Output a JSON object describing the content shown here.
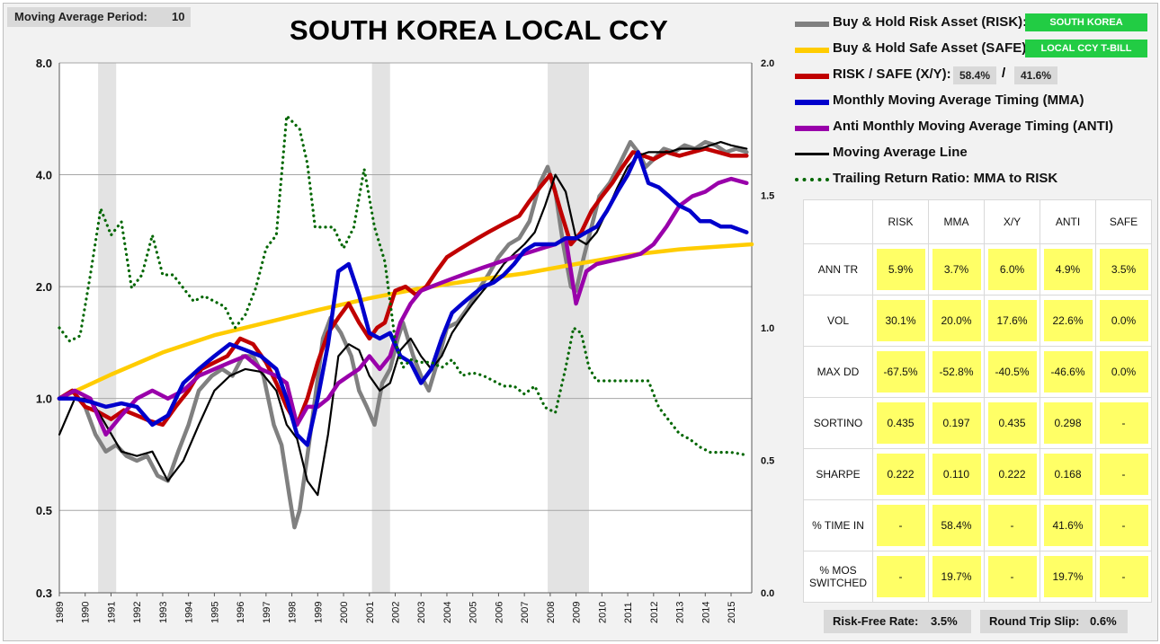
{
  "settings": {
    "period_label": "Moving Average Period:",
    "period_value": "10"
  },
  "chart_data": {
    "type": "line",
    "title": "SOUTH KOREA LOCAL CCY",
    "y_scale": "log",
    "ylim": [
      0.3,
      8.0
    ],
    "y_ticks": [
      "0.3",
      "0.5",
      "1.0",
      "2.0",
      "4.0",
      "8.0"
    ],
    "y2lim": [
      0.0,
      2.0
    ],
    "y2_ticks": [
      "0.0",
      "0.5",
      "1.0",
      "1.5",
      "2.0"
    ],
    "x_ticks": [
      "1989",
      "1990",
      "1991",
      "1992",
      "1993",
      "1994",
      "1995",
      "1996",
      "1997",
      "1998",
      "1999",
      "2000",
      "2001",
      "2002",
      "2003",
      "2004",
      "2005",
      "2006",
      "2007",
      "2008",
      "2009",
      "2010",
      "2011",
      "2012",
      "2013",
      "2014",
      "2015"
    ],
    "xlim": [
      1989.0,
      2015.8
    ],
    "recessions": [
      [
        1990.5,
        1991.2
      ],
      [
        2001.1,
        2001.8
      ],
      [
        2007.9,
        2009.5
      ]
    ],
    "grid": true,
    "legend_position": "right",
    "series": [
      {
        "name": "Buy & Hold Risk Asset (RISK):",
        "color": "#808080",
        "axis": "left",
        "style": "thick",
        "x": [
          1989.0,
          1989.5,
          1990.0,
          1990.4,
          1990.8,
          1991.2,
          1991.6,
          1992.0,
          1992.4,
          1992.8,
          1993.2,
          1993.6,
          1994.0,
          1994.4,
          1994.9,
          1995.3,
          1995.7,
          1996.1,
          1996.5,
          1996.9,
          1997.3,
          1997.6,
          1997.9,
          1998.1,
          1998.3,
          1998.6,
          1998.9,
          1999.2,
          1999.5,
          1999.9,
          2000.3,
          2000.6,
          2000.9,
          2001.2,
          2001.5,
          2001.8,
          2002.1,
          2002.3,
          2002.7,
          2003.0,
          2003.3,
          2003.7,
          2004.0,
          2004.4,
          2004.8,
          2005.2,
          2005.6,
          2006.0,
          2006.4,
          2006.8,
          2007.2,
          2007.6,
          2007.9,
          2008.2,
          2008.5,
          2008.8,
          2009.0,
          2009.3,
          2009.6,
          2009.9,
          2010.3,
          2010.7,
          2011.1,
          2011.4,
          2011.7,
          2012.0,
          2012.4,
          2012.8,
          2013.2,
          2013.6,
          2014.0,
          2014.4,
          2014.8,
          2015.2,
          2015.6
        ],
        "y": [
          1.0,
          1.05,
          0.95,
          0.8,
          0.72,
          0.75,
          0.7,
          0.68,
          0.7,
          0.62,
          0.6,
          0.72,
          0.85,
          1.05,
          1.15,
          1.2,
          1.15,
          1.3,
          1.3,
          1.15,
          0.85,
          0.75,
          0.55,
          0.45,
          0.5,
          0.7,
          1.0,
          1.45,
          1.65,
          1.5,
          1.3,
          1.05,
          0.95,
          0.85,
          1.1,
          1.2,
          1.45,
          1.6,
          1.3,
          1.15,
          1.05,
          1.3,
          1.55,
          1.6,
          1.75,
          1.95,
          2.15,
          2.4,
          2.6,
          2.7,
          3.0,
          3.8,
          4.2,
          3.6,
          2.6,
          2.0,
          1.95,
          2.4,
          2.9,
          3.5,
          3.8,
          4.3,
          4.9,
          4.6,
          4.2,
          4.4,
          4.7,
          4.6,
          4.8,
          4.7,
          4.9,
          4.8,
          4.6,
          4.7,
          4.6
        ]
      },
      {
        "name": "Buy & Hold Safe Asset (SAFE):",
        "color": "#ffcc00",
        "axis": "left",
        "style": "thick",
        "x": [
          1989.0,
          1991.0,
          1993.0,
          1995.0,
          1997.0,
          1999.0,
          2001.0,
          2003.0,
          2005.0,
          2007.0,
          2009.0,
          2011.0,
          2013.0,
          2015.8
        ],
        "y": [
          1.0,
          1.16,
          1.33,
          1.48,
          1.6,
          1.73,
          1.86,
          1.98,
          2.08,
          2.17,
          2.3,
          2.43,
          2.52,
          2.6
        ]
      },
      {
        "name": "RISK / SAFE (X/Y):",
        "color": "#c00000",
        "axis": "left",
        "style": "thick",
        "x": [
          1989.0,
          1989.5,
          1990.0,
          1990.5,
          1991.0,
          1991.5,
          1992.0,
          1992.5,
          1993.0,
          1993.5,
          1994.0,
          1994.5,
          1995.0,
          1995.5,
          1996.0,
          1996.5,
          1997.0,
          1997.4,
          1997.8,
          1998.2,
          1998.6,
          1999.0,
          1999.4,
          1999.8,
          2000.2,
          2000.6,
          2001.0,
          2001.3,
          2001.6,
          2002.0,
          2002.4,
          2002.8,
          2003.2,
          2003.6,
          2004.0,
          2004.4,
          2004.8,
          2005.2,
          2005.6,
          2006.0,
          2006.4,
          2006.8,
          2007.2,
          2007.6,
          2008.0,
          2008.4,
          2008.8,
          2009.2,
          2009.6,
          2010.0,
          2010.4,
          2010.8,
          2011.2,
          2011.6,
          2012.0,
          2012.5,
          2013.0,
          2013.5,
          2014.0,
          2014.5,
          2015.0,
          2015.6
        ],
        "y": [
          1.0,
          1.05,
          0.95,
          0.92,
          0.88,
          0.93,
          0.9,
          0.87,
          0.85,
          0.95,
          1.05,
          1.2,
          1.25,
          1.3,
          1.45,
          1.4,
          1.25,
          1.1,
          0.95,
          0.85,
          1.0,
          1.25,
          1.5,
          1.65,
          1.8,
          1.6,
          1.45,
          1.55,
          1.6,
          1.95,
          2.0,
          1.9,
          2.0,
          2.2,
          2.4,
          2.5,
          2.6,
          2.7,
          2.8,
          2.9,
          3.0,
          3.1,
          3.4,
          3.7,
          4.0,
          3.2,
          2.6,
          2.8,
          3.2,
          3.5,
          3.8,
          4.2,
          4.6,
          4.5,
          4.4,
          4.6,
          4.5,
          4.6,
          4.7,
          4.6,
          4.5,
          4.5
        ]
      },
      {
        "name": "Monthly Moving Average Timing (MMA)",
        "color": "#0000cc",
        "axis": "left",
        "style": "thick",
        "x": [
          1989.0,
          1989.6,
          1990.2,
          1990.8,
          1991.4,
          1992.0,
          1992.6,
          1993.2,
          1993.8,
          1994.4,
          1995.0,
          1995.6,
          1996.2,
          1996.8,
          1997.4,
          1997.8,
          1998.2,
          1998.6,
          1999.0,
          1999.4,
          1999.8,
          2000.2,
          2000.6,
          2001.0,
          2001.4,
          2001.8,
          2002.2,
          2002.6,
          2003.0,
          2003.4,
          2003.8,
          2004.2,
          2004.6,
          2005.0,
          2005.4,
          2005.8,
          2006.2,
          2006.6,
          2007.0,
          2007.4,
          2007.8,
          2008.2,
          2008.6,
          2009.0,
          2009.4,
          2009.8,
          2010.2,
          2010.6,
          2011.0,
          2011.4,
          2011.8,
          2012.2,
          2012.6,
          2013.0,
          2013.4,
          2013.8,
          2014.2,
          2014.6,
          2015.0,
          2015.6
        ],
        "y": [
          1.0,
          1.0,
          0.98,
          0.95,
          0.97,
          0.95,
          0.85,
          0.9,
          1.1,
          1.2,
          1.3,
          1.4,
          1.35,
          1.3,
          1.2,
          1.0,
          0.8,
          0.75,
          1.0,
          1.4,
          2.2,
          2.3,
          1.9,
          1.5,
          1.45,
          1.5,
          1.3,
          1.25,
          1.1,
          1.2,
          1.45,
          1.7,
          1.8,
          1.9,
          2.0,
          2.05,
          2.15,
          2.3,
          2.5,
          2.6,
          2.6,
          2.6,
          2.7,
          2.7,
          2.8,
          2.9,
          3.2,
          3.6,
          4.0,
          4.6,
          3.8,
          3.7,
          3.5,
          3.3,
          3.2,
          3.0,
          3.0,
          2.9,
          2.9,
          2.8
        ]
      },
      {
        "name": "Anti Monthly Moving Average Timing (ANTI)",
        "color": "#9900aa",
        "axis": "left",
        "style": "thick",
        "x": [
          1989.0,
          1989.6,
          1990.2,
          1990.8,
          1991.4,
          1992.0,
          1992.6,
          1993.2,
          1993.8,
          1994.4,
          1995.0,
          1995.6,
          1996.2,
          1996.8,
          1997.4,
          1997.8,
          1998.2,
          1998.6,
          1999.0,
          1999.4,
          1999.8,
          2000.2,
          2000.6,
          2001.0,
          2001.4,
          2001.8,
          2002.2,
          2002.6,
          2003.0,
          2003.4,
          2003.8,
          2004.2,
          2004.6,
          2005.0,
          2005.4,
          2005.8,
          2006.2,
          2006.6,
          2007.0,
          2007.4,
          2007.8,
          2008.2,
          2008.6,
          2009.0,
          2009.4,
          2009.8,
          2010.4,
          2011.0,
          2011.5,
          2012.0,
          2012.5,
          2013.0,
          2013.5,
          2014.0,
          2014.5,
          2015.0,
          2015.6
        ],
        "y": [
          1.0,
          1.05,
          1.0,
          0.8,
          0.9,
          1.0,
          1.05,
          1.0,
          1.05,
          1.15,
          1.2,
          1.25,
          1.3,
          1.2,
          1.15,
          1.1,
          0.85,
          0.95,
          0.95,
          1.0,
          1.1,
          1.15,
          1.2,
          1.3,
          1.2,
          1.3,
          1.6,
          1.8,
          1.95,
          2.0,
          2.05,
          2.1,
          2.15,
          2.2,
          2.25,
          2.3,
          2.35,
          2.4,
          2.45,
          2.5,
          2.55,
          2.6,
          2.7,
          1.8,
          2.2,
          2.3,
          2.35,
          2.4,
          2.45,
          2.6,
          2.9,
          3.3,
          3.5,
          3.6,
          3.8,
          3.9,
          3.8
        ]
      },
      {
        "name": "Moving Average Line",
        "color": "#000000",
        "axis": "left",
        "style": "thin",
        "x": [
          1989.0,
          1989.6,
          1990.2,
          1990.8,
          1991.4,
          1992.0,
          1992.6,
          1993.2,
          1993.8,
          1994.4,
          1995.0,
          1995.6,
          1996.2,
          1996.8,
          1997.4,
          1997.8,
          1998.2,
          1998.6,
          1999.0,
          1999.4,
          1999.8,
          2000.2,
          2000.6,
          2001.0,
          2001.4,
          2001.8,
          2002.2,
          2002.6,
          2003.0,
          2003.4,
          2003.8,
          2004.2,
          2004.6,
          2005.0,
          2005.4,
          2005.8,
          2006.2,
          2006.6,
          2007.0,
          2007.4,
          2007.8,
          2008.2,
          2008.6,
          2009.0,
          2009.4,
          2009.8,
          2010.2,
          2010.6,
          2011.0,
          2011.4,
          2011.8,
          2012.2,
          2012.6,
          2013.0,
          2013.4,
          2013.8,
          2014.2,
          2014.6,
          2015.0,
          2015.6
        ],
        "y": [
          0.8,
          1.0,
          1.0,
          0.85,
          0.72,
          0.7,
          0.72,
          0.6,
          0.68,
          0.85,
          1.05,
          1.15,
          1.2,
          1.18,
          1.05,
          0.85,
          0.78,
          0.6,
          0.55,
          0.8,
          1.3,
          1.4,
          1.35,
          1.15,
          1.05,
          1.1,
          1.35,
          1.45,
          1.3,
          1.2,
          1.3,
          1.5,
          1.65,
          1.8,
          1.95,
          2.1,
          2.3,
          2.45,
          2.6,
          2.8,
          3.3,
          4.0,
          3.6,
          2.7,
          2.6,
          2.8,
          3.2,
          3.7,
          4.2,
          4.5,
          4.6,
          4.6,
          4.6,
          4.7,
          4.7,
          4.7,
          4.8,
          4.9,
          4.8,
          4.7
        ]
      },
      {
        "name": "Trailing Return Ratio: MMA to RISK",
        "color": "#006600",
        "axis": "right",
        "style": "dotted",
        "x": [
          1989.0,
          1989.4,
          1989.8,
          1990.2,
          1990.6,
          1991.0,
          1991.4,
          1991.8,
          1992.2,
          1992.6,
          1993.0,
          1993.4,
          1993.8,
          1994.2,
          1994.6,
          1995.0,
          1995.4,
          1995.8,
          1996.2,
          1996.6,
          1997.0,
          1997.4,
          1997.8,
          1998.0,
          1998.3,
          1998.6,
          1998.9,
          1999.2,
          1999.6,
          2000.0,
          2000.4,
          2000.8,
          2001.2,
          2001.6,
          2002.0,
          2002.3,
          2002.6,
          2003.0,
          2003.4,
          2003.8,
          2004.2,
          2004.6,
          2005.0,
          2005.4,
          2005.8,
          2006.2,
          2006.6,
          2007.0,
          2007.4,
          2007.8,
          2008.2,
          2008.6,
          2008.9,
          2009.2,
          2009.5,
          2009.8,
          2010.2,
          2010.6,
          2011.0,
          2011.4,
          2011.8,
          2012.2,
          2012.6,
          2013.0,
          2013.4,
          2013.8,
          2014.2,
          2014.6,
          2015.0,
          2015.6
        ],
        "y": [
          1.0,
          0.95,
          0.97,
          1.2,
          1.45,
          1.35,
          1.4,
          1.15,
          1.2,
          1.35,
          1.2,
          1.2,
          1.15,
          1.1,
          1.12,
          1.1,
          1.08,
          1.0,
          1.05,
          1.15,
          1.3,
          1.35,
          1.8,
          1.78,
          1.75,
          1.62,
          1.38,
          1.38,
          1.38,
          1.3,
          1.38,
          1.6,
          1.38,
          1.25,
          0.95,
          0.85,
          0.88,
          0.87,
          0.87,
          0.85,
          0.88,
          0.82,
          0.83,
          0.82,
          0.8,
          0.78,
          0.78,
          0.75,
          0.78,
          0.7,
          0.68,
          0.85,
          1.0,
          0.98,
          0.85,
          0.8,
          0.8,
          0.8,
          0.8,
          0.8,
          0.8,
          0.7,
          0.65,
          0.6,
          0.58,
          0.55,
          0.53,
          0.53,
          0.53,
          0.52
        ]
      }
    ]
  },
  "legend": {
    "risk_label": "Buy & Hold Risk Asset (RISK):",
    "risk_badge": "SOUTH KOREA",
    "safe_label": "Buy & Hold Safe Asset (SAFE):",
    "safe_badge": "LOCAL CCY T-BILL",
    "xy_label": "RISK / SAFE (X/Y):",
    "xy_risk_pct": "58.4%",
    "xy_sep": "/",
    "xy_safe_pct": "41.6%",
    "mma_label": "Monthly Moving Average Timing (MMA)",
    "anti_label": "Anti Monthly Moving Average Timing (ANTI)",
    "ma_line_label": "Moving Average Line",
    "ratio_label": "Trailing Return Ratio: MMA to RISK"
  },
  "stats": {
    "headers": [
      "RISK",
      "MMA",
      "X/Y",
      "ANTI",
      "SAFE"
    ],
    "rows": [
      {
        "label": "ANN TR",
        "values": [
          "5.9%",
          "3.7%",
          "6.0%",
          "4.9%",
          "3.5%"
        ]
      },
      {
        "label": "VOL",
        "values": [
          "30.1%",
          "20.0%",
          "17.6%",
          "22.6%",
          "0.0%"
        ]
      },
      {
        "label": "MAX DD",
        "values": [
          "-67.5%",
          "-52.8%",
          "-40.5%",
          "-46.6%",
          "0.0%"
        ]
      },
      {
        "label": "SORTINO",
        "values": [
          "0.435",
          "0.197",
          "0.435",
          "0.298",
          "-"
        ]
      },
      {
        "label": "SHARPE",
        "values": [
          "0.222",
          "0.110",
          "0.222",
          "0.168",
          "-"
        ]
      },
      {
        "label": "% TIME IN",
        "values": [
          "-",
          "58.4%",
          "-",
          "41.6%",
          "-"
        ]
      },
      {
        "label_line1": "% MOS",
        "label_line2": "SWITCHED",
        "values": [
          "-",
          "19.7%",
          "-",
          "19.7%",
          "-"
        ]
      }
    ]
  },
  "footer": {
    "risk_free_label": "Risk-Free Rate:",
    "risk_free_value": "3.5%",
    "slip_label": "Round Trip Slip:",
    "slip_value": "0.6%"
  }
}
